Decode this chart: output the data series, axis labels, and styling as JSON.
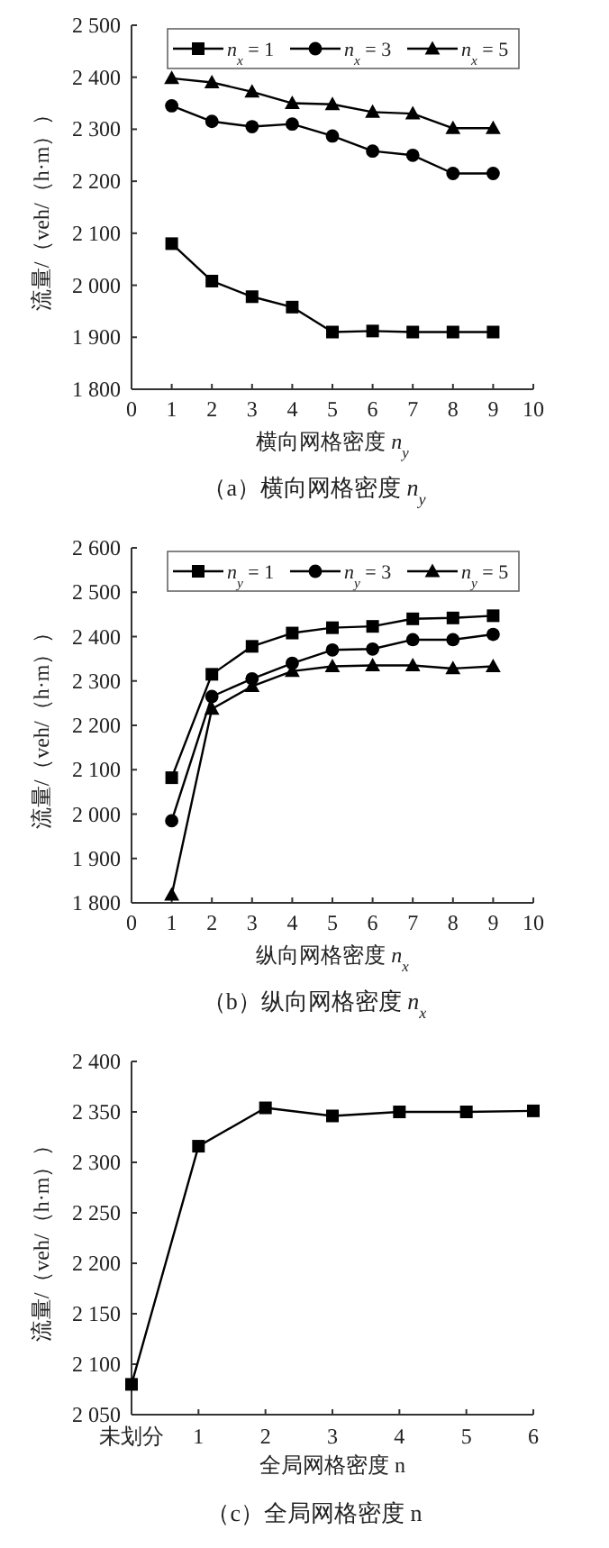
{
  "chart_data": [
    {
      "type": "line",
      "title": "（a）横向网格密度 n$_{y}$",
      "xlabel": "横向网格密度 n$_{y}$",
      "ylabel": "流量/（veh/（h·m））",
      "x": [
        1,
        2,
        3,
        4,
        5,
        6,
        7,
        8,
        9
      ],
      "xlim": [
        0,
        10
      ],
      "xticks": [
        0,
        1,
        2,
        3,
        4,
        5,
        6,
        7,
        8,
        9,
        10
      ],
      "ylim": [
        1800,
        2500
      ],
      "yticks": [
        {
          "value": 1800,
          "label": "1 800"
        },
        {
          "value": 1900,
          "label": "1 900"
        },
        {
          "value": 2000,
          "label": "2 000"
        },
        {
          "value": 2100,
          "label": "2 100"
        },
        {
          "value": 2200,
          "label": "2 200"
        },
        {
          "value": 2300,
          "label": "2 300"
        },
        {
          "value": 2400,
          "label": "2 400"
        },
        {
          "value": 2500,
          "label": "2 500"
        }
      ],
      "legend": "top",
      "series": [
        {
          "name": "n$_{x}$ = 1",
          "color": "#000000",
          "marker": "square",
          "values": [
            2080,
            2008,
            1978,
            1958,
            1910,
            1912,
            1910,
            1910,
            1910
          ]
        },
        {
          "name": "n$_{x}$ = 3",
          "color": "#000000",
          "marker": "circle",
          "values": [
            2345,
            2315,
            2305,
            2310,
            2287,
            2258,
            2250,
            2215,
            2215
          ]
        },
        {
          "name": "n$_{x}$ = 5",
          "color": "#000000",
          "marker": "triangle",
          "values": [
            2398,
            2390,
            2372,
            2350,
            2348,
            2333,
            2330,
            2302,
            2302
          ]
        }
      ]
    },
    {
      "type": "line",
      "title": "（b）纵向网格密度 n$_{x}$",
      "xlabel": "纵向网格密度 n$_{x}$",
      "ylabel": "流量/（veh/（h·m））",
      "x": [
        1,
        2,
        3,
        4,
        5,
        6,
        7,
        8,
        9
      ],
      "xlim": [
        0,
        10
      ],
      "xticks": [
        0,
        1,
        2,
        3,
        4,
        5,
        6,
        7,
        8,
        9,
        10
      ],
      "ylim": [
        1800,
        2600
      ],
      "yticks": [
        {
          "value": 1800,
          "label": "1 800"
        },
        {
          "value": 1900,
          "label": "1 900"
        },
        {
          "value": 2000,
          "label": "2 000"
        },
        {
          "value": 2100,
          "label": "2 100"
        },
        {
          "value": 2200,
          "label": "2 200"
        },
        {
          "value": 2300,
          "label": "2 300"
        },
        {
          "value": 2400,
          "label": "2 400"
        },
        {
          "value": 2500,
          "label": "2 500"
        },
        {
          "value": 2600,
          "label": "2 600"
        }
      ],
      "legend": "top",
      "series": [
        {
          "name": "n$_{y}$ = 1",
          "color": "#000000",
          "marker": "square",
          "values": [
            2082,
            2315,
            2378,
            2408,
            2420,
            2423,
            2440,
            2442,
            2447
          ]
        },
        {
          "name": "n$_{y}$ = 3",
          "color": "#000000",
          "marker": "circle",
          "values": [
            1985,
            2265,
            2305,
            2340,
            2370,
            2372,
            2393,
            2393,
            2405
          ]
        },
        {
          "name": "n$_{y}$ = 5",
          "color": "#000000",
          "marker": "triangle",
          "values": [
            1818,
            2237,
            2288,
            2322,
            2333,
            2335,
            2335,
            2328,
            2333
          ]
        }
      ]
    },
    {
      "type": "line",
      "title": "（c）全局网格密度 n",
      "xlabel": "全局网格密度 n",
      "ylabel": "流量/（veh/（h·m））",
      "categories": [
        "未划分",
        "1",
        "2",
        "3",
        "4",
        "5",
        "6"
      ],
      "ylim": [
        2050,
        2400
      ],
      "yticks": [
        {
          "value": 2050,
          "label": "2 050"
        },
        {
          "value": 2100,
          "label": "2 100"
        },
        {
          "value": 2150,
          "label": "2 150"
        },
        {
          "value": 2200,
          "label": "2 200"
        },
        {
          "value": 2250,
          "label": "2 250"
        },
        {
          "value": 2300,
          "label": "2 300"
        },
        {
          "value": 2350,
          "label": "2 350"
        },
        {
          "value": 2400,
          "label": "2 400"
        }
      ],
      "marker": "square",
      "series": [
        {
          "color": "#000000",
          "values": [
            2080,
            2316,
            2354,
            2346,
            2350,
            2350,
            2351
          ]
        }
      ]
    }
  ]
}
